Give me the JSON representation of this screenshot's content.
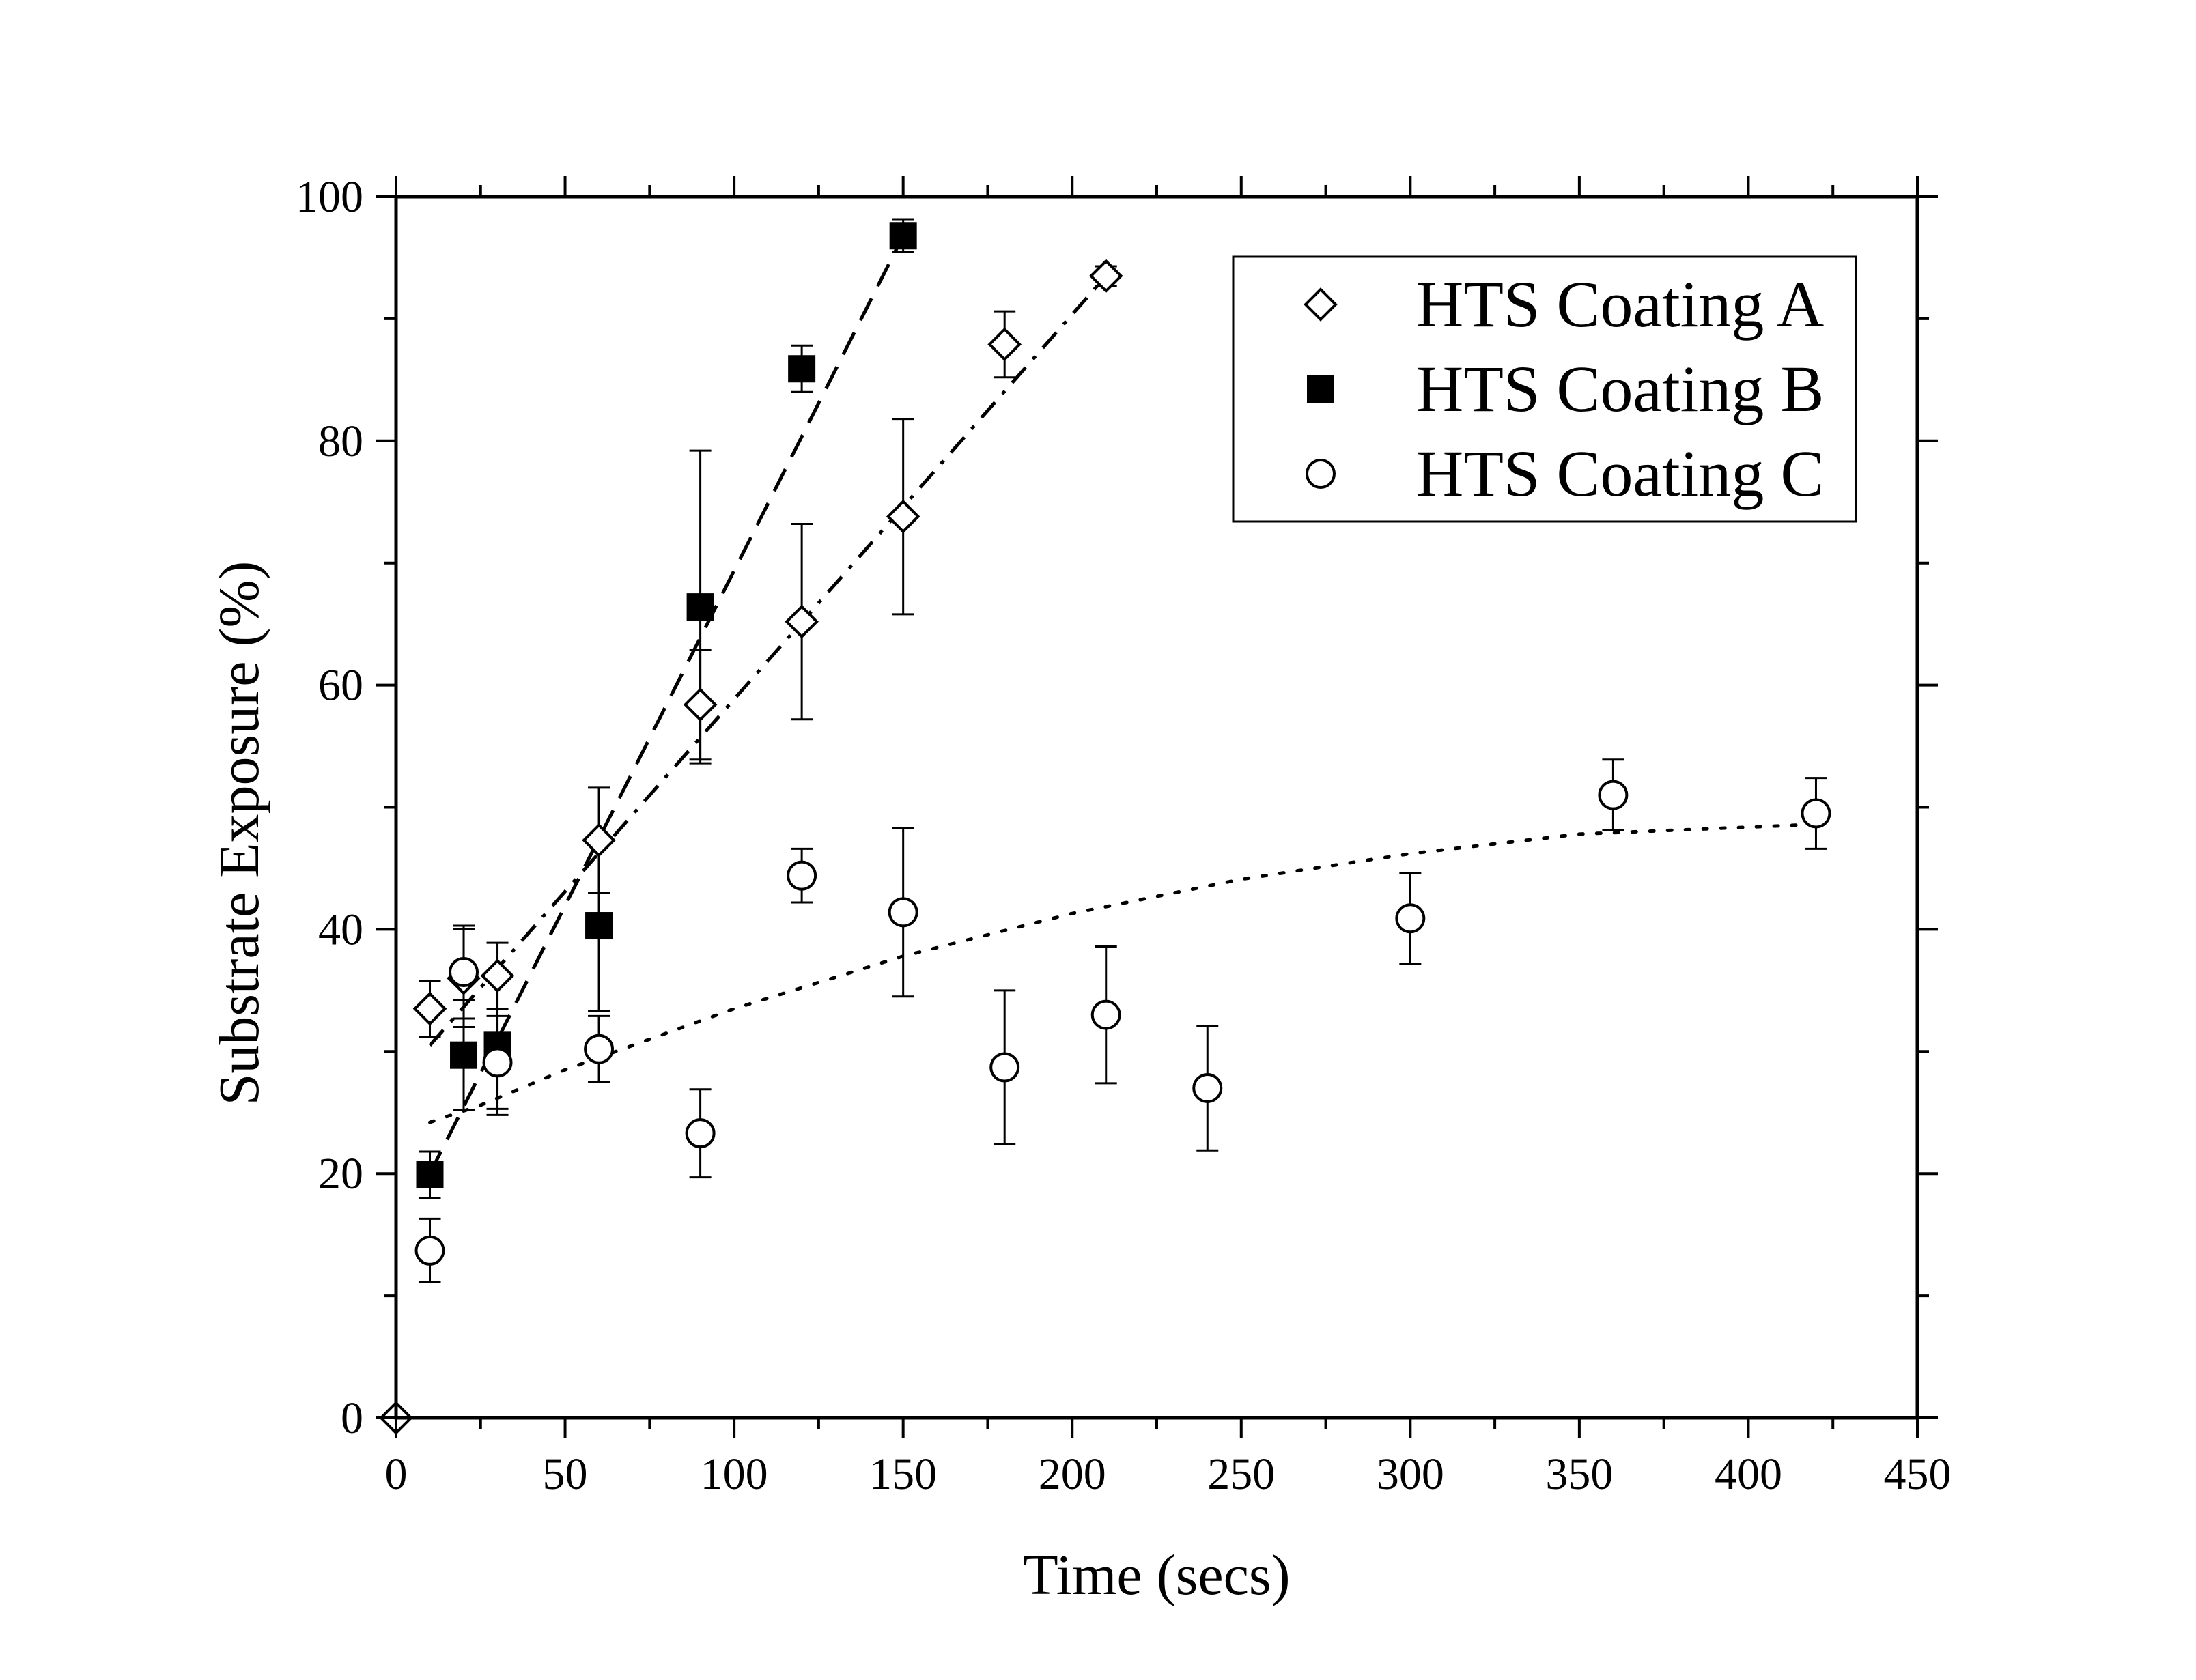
{
  "chart_data": {
    "type": "scatter",
    "title": "",
    "xlabel": "Time (secs)",
    "ylabel": "Substrate Exposure (%)",
    "xlim": [
      0,
      450
    ],
    "ylim": [
      0,
      100
    ],
    "x_ticks": [
      0,
      50,
      100,
      150,
      200,
      250,
      300,
      350,
      400,
      450
    ],
    "y_ticks": [
      0,
      20,
      40,
      60,
      80,
      100
    ],
    "grid": false,
    "legend_position": "top-right",
    "series": [
      {
        "name": "HTS Coating A",
        "marker": "open-diamond",
        "fit_line": "dash-dot",
        "x": [
          0,
          10,
          20,
          30,
          60,
          90,
          120,
          150,
          180,
          210
        ],
        "y": [
          0,
          33.5,
          36,
          36.2,
          47.3,
          58.4,
          65.2,
          73.8,
          87.9,
          93.5
        ],
        "err": [
          0,
          2.3,
          4.0,
          2.7,
          4.3,
          4.5,
          8.0,
          8.0,
          2.7,
          0.8
        ],
        "fit_x": [
          10,
          210
        ],
        "fit_y": [
          30.5,
          93.5
        ]
      },
      {
        "name": "HTS Coating B",
        "marker": "filled-square",
        "fit_line": "dashed",
        "x": [
          10,
          20,
          30,
          60,
          90,
          120,
          150
        ],
        "y": [
          19.9,
          29.7,
          30.5,
          40.3,
          66.4,
          85.9,
          96.8
        ],
        "err": [
          1.9,
          4.5,
          5.7,
          7.0,
          12.8,
          1.9,
          1.3
        ],
        "fit_x": [
          10,
          150
        ],
        "fit_y": [
          20.0,
          96.8
        ]
      },
      {
        "name": "HTS Coating C",
        "marker": "open-circle",
        "fit_line": "dotted",
        "x": [
          10,
          20,
          30,
          60,
          90,
          120,
          150,
          180,
          210,
          240,
          300,
          360,
          420
        ],
        "y": [
          13.7,
          36.5,
          29.1,
          30.2,
          23.3,
          44.4,
          41.4,
          28.7,
          33.0,
          27.0,
          40.9,
          51.0,
          49.5
        ],
        "err": [
          2.6,
          3.8,
          3.8,
          2.7,
          3.6,
          2.2,
          6.9,
          6.3,
          5.6,
          5.1,
          3.7,
          2.9,
          2.9
        ],
        "fit_x": [
          10,
          25,
          50,
          100,
          150,
          200,
          250,
          300,
          350,
          420
        ],
        "fit_y": [
          24.2,
          25.6,
          28.5,
          33.5,
          37.8,
          41.3,
          44.1,
          46.2,
          47.8,
          48.6
        ]
      }
    ]
  }
}
